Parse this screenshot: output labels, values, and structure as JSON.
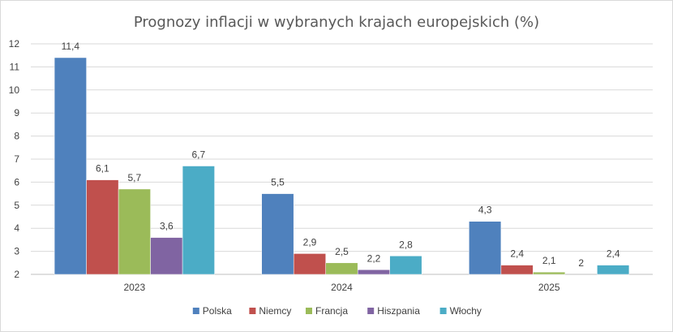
{
  "chart_data": {
    "type": "bar",
    "title": "Prognozy inflacji w wybranych krajach europejskich (%)",
    "xlabel": "",
    "ylabel": "",
    "categories": [
      "2023",
      "2024",
      "2025"
    ],
    "ylim": [
      2,
      12
    ],
    "yticks": [
      "2",
      "3",
      "4",
      "5",
      "6",
      "7",
      "8",
      "9",
      "10",
      "11",
      "12"
    ],
    "grid": true,
    "legend_position": "bottom",
    "series": [
      {
        "name": "Polska",
        "color": "#4f81bd",
        "values": [
          11.4,
          5.5,
          4.3
        ],
        "labels": [
          "11,4",
          "5,5",
          "4,3"
        ]
      },
      {
        "name": "Niemcy",
        "color": "#c0504d",
        "values": [
          6.1,
          2.9,
          2.4
        ],
        "labels": [
          "6,1",
          "2,9",
          "2,4"
        ]
      },
      {
        "name": "Francja",
        "color": "#9bbb59",
        "values": [
          5.7,
          2.5,
          2.1
        ],
        "labels": [
          "5,7",
          "2,5",
          "2,1"
        ]
      },
      {
        "name": "Hiszpania",
        "color": "#8064a2",
        "values": [
          3.6,
          2.2,
          2.0
        ],
        "labels": [
          "3,6",
          "2,2",
          "2"
        ]
      },
      {
        "name": "Włochy",
        "color": "#4bacc6",
        "values": [
          6.7,
          2.8,
          2.4
        ],
        "labels": [
          "6,7",
          "2,8",
          "2,4"
        ]
      }
    ]
  }
}
